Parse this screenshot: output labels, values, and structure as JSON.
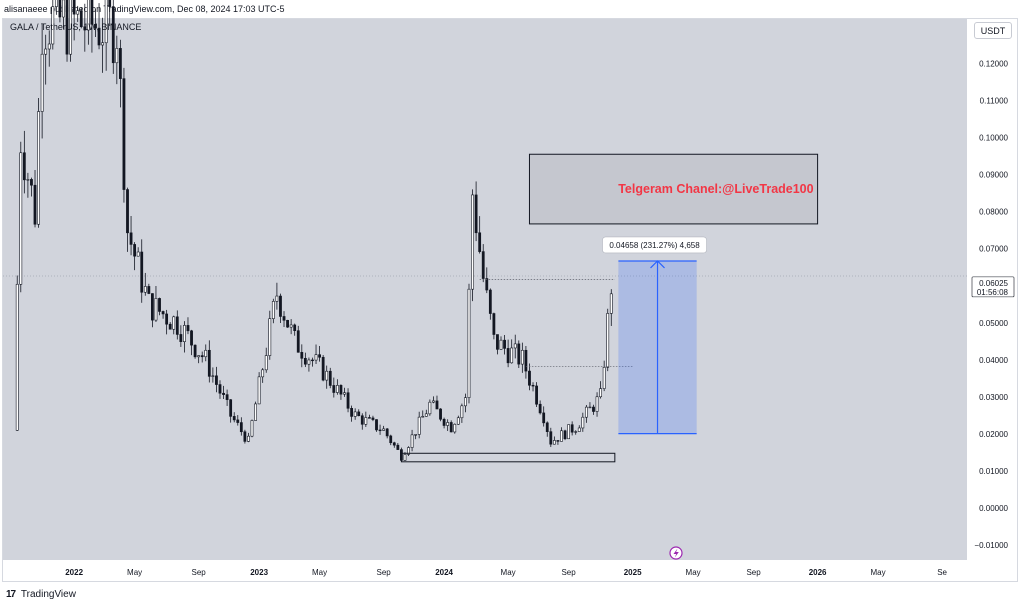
{
  "header": {
    "publisher_line": "alisanaeee published on TradingView.com, Dec 08, 2024 17:03 UTC-5"
  },
  "symbol": {
    "label": "GALA / TetherUS, 1W, BINANCE"
  },
  "currency_button": "USDT",
  "price_axis": {
    "ticks": [
      "0.12000",
      "0.11000",
      "0.10000",
      "0.09000",
      "0.08000",
      "0.07000",
      "0.05000",
      "0.04000",
      "0.03000",
      "0.02000",
      "0.01000",
      "0.00000",
      "−0.01000"
    ],
    "last_price": "0.06025",
    "countdown": "01:56:08"
  },
  "time_axis": {
    "ticks": [
      "2022",
      "May",
      "Sep",
      "2023",
      "May",
      "Sep",
      "2024",
      "May",
      "Sep",
      "2025",
      "May",
      "Sep",
      "2026",
      "May",
      "Se"
    ]
  },
  "annotations": {
    "telegram_note": "Telgeram Chanel:@LiveTrade100",
    "measure_label": "0.04658 (231.27%) 4,658"
  },
  "footer": {
    "logo": "17",
    "brand": "TradingView"
  },
  "colors": {
    "background": "#d1d4dc",
    "candle": "#131722",
    "measure_fill": "#b2c2e8",
    "measure_line": "#2962ff",
    "note_text": "#f23645",
    "lightning": "#9c27b0"
  },
  "chart_data": {
    "type": "candlestick",
    "title": "GALA / TetherUS, 1W, BINANCE",
    "ylabel": "USDT",
    "ylim": [
      -0.014,
      0.132
    ],
    "xlim": [
      "2021-08-16",
      "2026-10-26"
    ],
    "last_price": 0.06025,
    "series": [
      {
        "name": "GALA / TetherUS",
        "approx_weekly_close_path": [
          {
            "date": "2021-09-13",
            "value": 0.021
          },
          {
            "date": "2021-09-27",
            "value": 0.1
          },
          {
            "date": "2021-10-25",
            "value": 0.08
          },
          {
            "date": "2021-11-08",
            "value": 0.132
          },
          {
            "date": "2022-04-04",
            "value": 0.13
          },
          {
            "date": "2022-04-25",
            "value": 0.075
          },
          {
            "date": "2022-06-06",
            "value": 0.055
          },
          {
            "date": "2022-08-01",
            "value": 0.05
          },
          {
            "date": "2022-09-26",
            "value": 0.04
          },
          {
            "date": "2022-11-14",
            "value": 0.025
          },
          {
            "date": "2022-12-19",
            "value": 0.018
          },
          {
            "date": "2023-02-13",
            "value": 0.058
          },
          {
            "date": "2023-03-20",
            "value": 0.045
          },
          {
            "date": "2023-05-15",
            "value": 0.037
          },
          {
            "date": "2023-07-17",
            "value": 0.025
          },
          {
            "date": "2023-09-11",
            "value": 0.021
          },
          {
            "date": "2023-10-16",
            "value": 0.014
          },
          {
            "date": "2023-12-11",
            "value": 0.028
          },
          {
            "date": "2024-01-22",
            "value": 0.022
          },
          {
            "date": "2024-02-19",
            "value": 0.03
          },
          {
            "date": "2024-03-04",
            "value": 0.085
          },
          {
            "date": "2024-03-25",
            "value": 0.062
          },
          {
            "date": "2024-04-15",
            "value": 0.045
          },
          {
            "date": "2024-06-10",
            "value": 0.04
          },
          {
            "date": "2024-07-22",
            "value": 0.025
          },
          {
            "date": "2024-08-05",
            "value": 0.018
          },
          {
            "date": "2024-09-23",
            "value": 0.022
          },
          {
            "date": "2024-11-11",
            "value": 0.03
          },
          {
            "date": "2024-12-02",
            "value": 0.06025
          }
        ]
      }
    ],
    "drawings": {
      "support_box": {
        "from": "2023-10-09",
        "to": "2024-12-02",
        "low": 0.0125,
        "high": 0.0148
      },
      "measure": {
        "from": "2024-12-09",
        "to": "2025-05-12",
        "low": 0.0201,
        "high": 0.0667,
        "label": "0.04658 (231.27%) 4,658"
      },
      "telegram_box": {
        "from": "2024-06-17",
        "to": "2026-01-05",
        "low": 0.0767,
        "high": 0.0955
      },
      "dotted_levels": [
        {
          "from": "2024-03-11",
          "to": "2024-12-02",
          "value": 0.0617
        },
        {
          "from": "2024-06-10",
          "to": "2025-01-06",
          "value": 0.0382
        }
      ]
    }
  }
}
